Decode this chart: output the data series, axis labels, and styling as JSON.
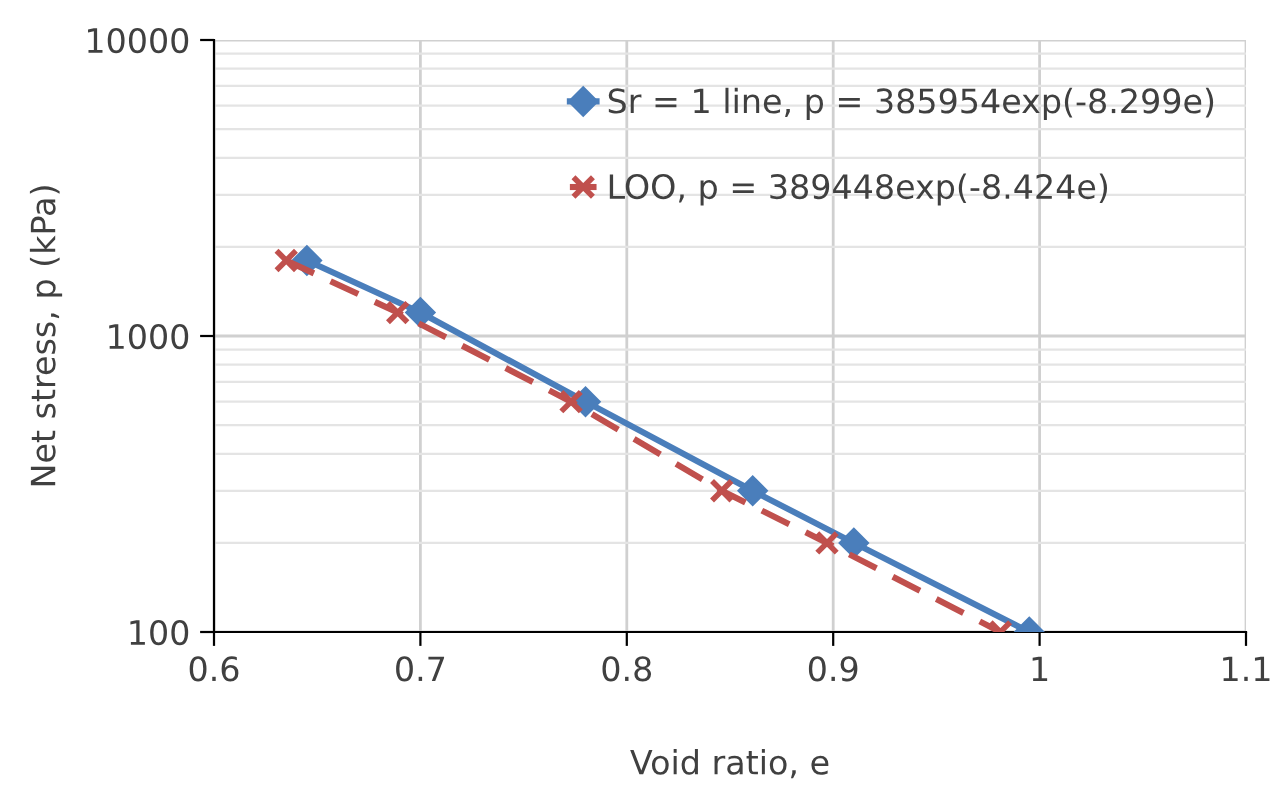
{
  "chart_data": {
    "type": "line",
    "xlabel": "Void ratio, e",
    "ylabel": "Net stress, p (kPa)",
    "log": "y",
    "xlim": [
      0.6,
      1.1
    ],
    "xticks": [
      0.6,
      0.7,
      0.8,
      0.9,
      1,
      1.1
    ],
    "ylim": [
      100,
      10000
    ],
    "yticks": [
      100,
      1000,
      10000
    ],
    "grid": true,
    "legend": "top right",
    "series": [
      {
        "name": "Sr = 1 line, p = 385954exp(-8.299e)",
        "color": "#4a7ebb",
        "marker": "diamond",
        "line_style": "solid",
        "x": [
          0.645,
          0.7,
          0.78,
          0.861,
          0.91,
          0.995
        ],
        "values": [
          1800,
          1200,
          600,
          300,
          200,
          100
        ]
      },
      {
        "name": "LOO, p = 389448exp(-8.424e)",
        "color": "#c0504d",
        "marker": "cross",
        "line_style": "dashed",
        "x": [
          0.635,
          0.689,
          0.773,
          0.846,
          0.897,
          0.981
        ],
        "values": [
          1800,
          1200,
          600,
          300,
          200,
          100
        ]
      }
    ]
  }
}
